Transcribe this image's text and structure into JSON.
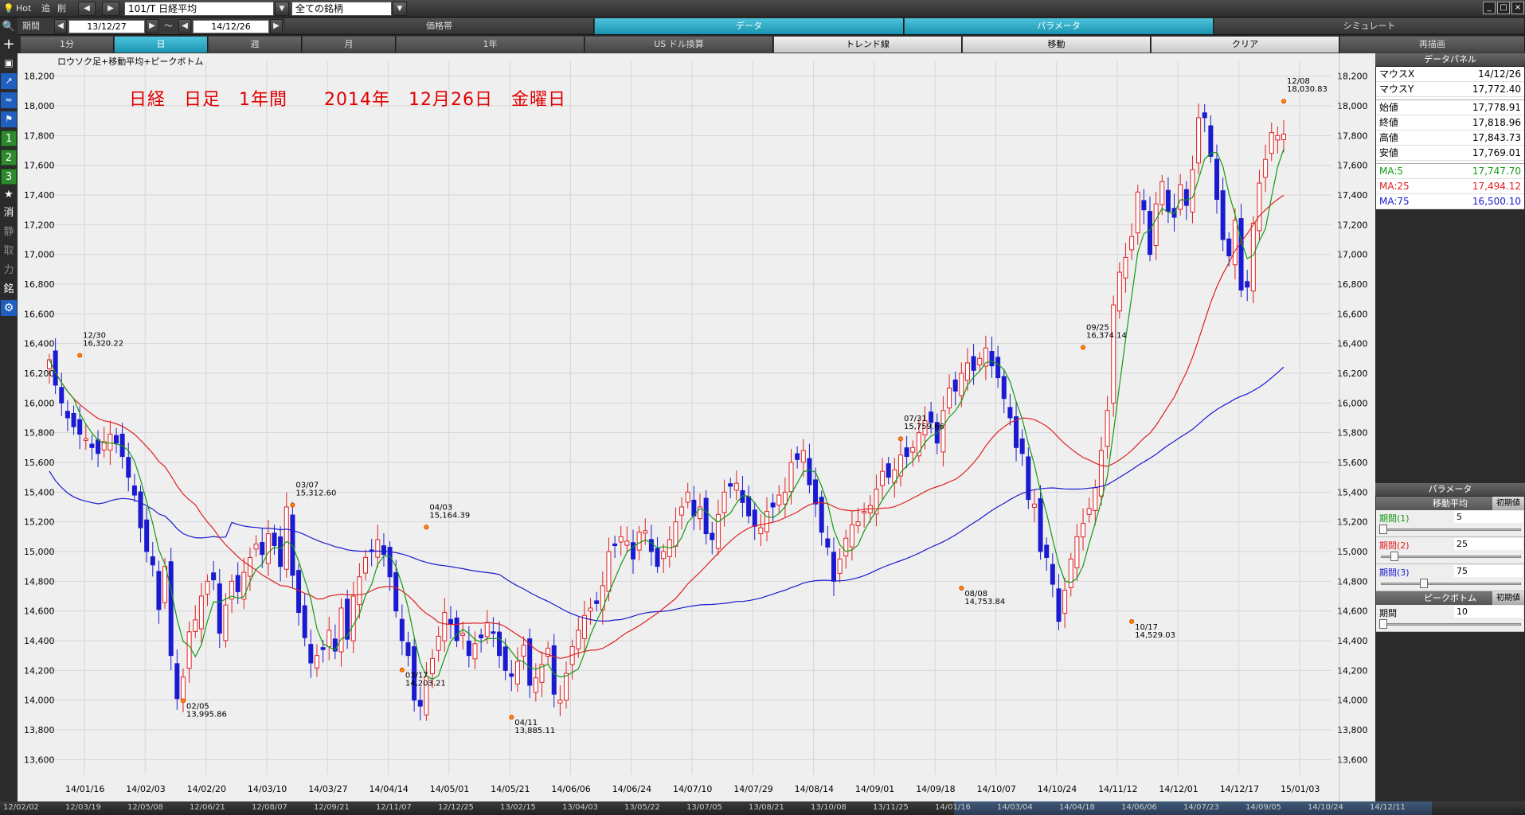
{
  "topbar": {
    "hot": "Hot",
    "add": "追",
    "del": "削",
    "symbol": "101/T 日経平均",
    "universe": "全ての銘柄"
  },
  "row2": {
    "period_label": "期間",
    "date_from": "13/12/27",
    "tilde": "～",
    "date_to": "14/12/26",
    "tabs": [
      {
        "label": "価格帯",
        "active": false
      },
      {
        "label": "データ",
        "active": true
      },
      {
        "label": "パラメータ",
        "active": true
      },
      {
        "label": "シミュレート",
        "active": false
      }
    ]
  },
  "row3": {
    "tabs": [
      {
        "label": "1分",
        "style": "dark"
      },
      {
        "label": "日",
        "style": "active"
      },
      {
        "label": "週",
        "style": "dark"
      },
      {
        "label": "月",
        "style": "dark"
      },
      {
        "label": "1年",
        "style": "dark"
      },
      {
        "label": "US ドル換算",
        "style": "dark"
      },
      {
        "label": "トレンド線",
        "style": "light"
      },
      {
        "label": "移動",
        "style": "light"
      },
      {
        "label": "クリア",
        "style": "light"
      },
      {
        "label": "再描画",
        "style": "dark"
      }
    ]
  },
  "leftbar": {
    "items": [
      "search-icon",
      "crosshair-icon",
      "camera-icon",
      "chart-icon",
      "chart2-icon",
      "flag-icon",
      "1",
      "2",
      "3",
      "★",
      "消",
      "静",
      "取",
      "力",
      "銘",
      "gear-icon"
    ]
  },
  "chart": {
    "label": "ロウソク足+移動平均+ピークボトム",
    "title": "日経　日足　1年間　　2014年　12月26日　金曜日",
    "colors": {
      "up": "#e02020",
      "down": "#1a1ad0",
      "ma5": "#139a13",
      "ma25": "#e02020",
      "ma75": "#1a1ad0",
      "bg": "#efefef"
    }
  },
  "chart_data": {
    "type": "candlestick",
    "title": "日経　日足　1年間　　2014年　12月26日　金曜日",
    "ylim": [
      13500,
      18300
    ],
    "y_ticks": [
      13600,
      13800,
      14000,
      14200,
      14400,
      14600,
      14800,
      15000,
      15200,
      15400,
      15600,
      15800,
      16000,
      16200,
      16400,
      16600,
      16800,
      17000,
      17200,
      17400,
      17600,
      17800,
      18000,
      18200
    ],
    "x_tick_labels": [
      "14/01/16",
      "14/02/03",
      "14/02/20",
      "14/03/10",
      "14/03/27",
      "14/04/14",
      "14/05/01",
      "14/05/21",
      "14/06/06",
      "14/06/24",
      "14/07/10",
      "14/07/29",
      "14/08/14",
      "14/09/01",
      "14/09/18",
      "14/10/07",
      "14/10/24",
      "14/11/12",
      "14/12/01",
      "14/12/17",
      "15/01/03"
    ],
    "annotations": [
      {
        "date": "12/30",
        "value": "16,320.22",
        "kind": "peak"
      },
      {
        "date": "02/05",
        "value": "13,995.86",
        "kind": "bottom"
      },
      {
        "date": "03/07",
        "value": "15,312.60",
        "kind": "peak"
      },
      {
        "date": "03/17",
        "value": "14,203.21",
        "kind": "bottom"
      },
      {
        "date": "04/03",
        "value": "15,164.39",
        "kind": "peak"
      },
      {
        "date": "04/11",
        "value": "13,885.11",
        "kind": "bottom"
      },
      {
        "date": "07/31",
        "value": "15,759.66",
        "kind": "peak"
      },
      {
        "date": "08/08",
        "value": "14,753.84",
        "kind": "bottom"
      },
      {
        "date": "09/25",
        "value": "16,374.14",
        "kind": "peak"
      },
      {
        "date": "10/17",
        "value": "14,529.03",
        "kind": "bottom"
      },
      {
        "date": "12/08",
        "value": "18,030.83",
        "kind": "peak"
      }
    ],
    "closes": [
      16291,
      16120,
      16000,
      15900,
      15840,
      15790,
      15760,
      15700,
      15660,
      15740,
      15790,
      15730,
      15640,
      15500,
      15380,
      15160,
      15000,
      14910,
      14610,
      14900,
      14300,
      14010,
      14155,
      14460,
      14540,
      14700,
      14800,
      14810,
      14450,
      14640,
      14800,
      14730,
      14860,
      14960,
      15050,
      14980,
      15120,
      15040,
      14900,
      15300,
      14840,
      14590,
      14420,
      14250,
      14300,
      14340,
      14470,
      14330,
      14620,
      14410,
      14700,
      14830,
      14960,
      15000,
      15080,
      14980,
      14830,
      14600,
      14400,
      14300,
      14000,
      13960,
      14160,
      14280,
      14430,
      14590,
      14510,
      14400,
      14450,
      14300,
      14380,
      14420,
      14520,
      14450,
      14300,
      14200,
      14160,
      14260,
      14370,
      14100,
      14150,
      14240,
      14350,
      14040,
      14000,
      14180,
      14360,
      14470,
      14570,
      14620,
      14650,
      14770,
      15000,
      15040,
      15100,
      15070,
      14950,
      15130,
      15140,
      15000,
      14900,
      15000,
      15080,
      15200,
      15300,
      15400,
      15240,
      15300,
      15120,
      15080,
      15250,
      15400,
      15440,
      15460,
      15330,
      15240,
      15170,
      15160,
      15270,
      15300,
      15380,
      15400,
      15600,
      15620,
      15680,
      15450,
      15320,
      15130,
      15030,
      14800,
      14950,
      15090,
      15180,
      15200,
      15270,
      15310,
      15420,
      15540,
      15500,
      15550,
      15650,
      15640,
      15700,
      15800,
      15880,
      15870,
      15730,
      15950,
      16100,
      16080,
      16200,
      16270,
      16220,
      16300,
      16370,
      16250,
      16170,
      16030,
      15900,
      15700,
      15660,
      15350,
      15320,
      15000,
      14960,
      14780,
      14530,
      14740,
      14950,
      15100,
      15190,
      15290,
      15430,
      15680,
      15950,
      16660,
      16880,
      16980,
      17120,
      17420,
      17300,
      17000,
      17340,
      17490,
      17290,
      17250,
      17470,
      17330,
      17570,
      17920,
      17920,
      17660,
      17370,
      17100,
      16990,
      17230,
      16760,
      16780,
      17210,
      17480,
      17640,
      17820,
      17800,
      17810
    ]
  },
  "rightpanel": {
    "data_title": "データパネル",
    "rows": [
      {
        "k": "マウスX",
        "v": "14/12/26",
        "color": "#000"
      },
      {
        "k": "マウスY",
        "v": "17,772.40",
        "color": "#000"
      },
      {
        "k": "始値",
        "v": "17,778.91",
        "color": "#000"
      },
      {
        "k": "終値",
        "v": "17,818.96",
        "color": "#000"
      },
      {
        "k": "高値",
        "v": "17,843.73",
        "color": "#000"
      },
      {
        "k": "安値",
        "v": "17,769.01",
        "color": "#000"
      },
      {
        "k": "MA:5",
        "v": "17,747.70",
        "color": "#139a13"
      },
      {
        "k": "MA:25",
        "v": "17,494.12",
        "color": "#e02020"
      },
      {
        "k": "MA:75",
        "v": "16,500.10",
        "color": "#1a1ad0"
      }
    ],
    "param_title": "パラメータ",
    "ma_title": "移動平均",
    "reset": "初期値",
    "params": [
      {
        "label": "期間(1)",
        "value": "5",
        "color": "#139a13",
        "level": 0.0
      },
      {
        "label": "期間(2)",
        "value": "25",
        "color": "#e02020",
        "level": 0.08
      },
      {
        "label": "期間(3)",
        "value": "75",
        "color": "#1a1ad0",
        "level": 0.3
      }
    ],
    "pb_title": "ピークボトム",
    "pb_params": [
      {
        "label": "期間",
        "value": "10",
        "color": "#000",
        "level": 0.0
      }
    ]
  },
  "timebar": {
    "labels": [
      "12/02/02",
      "12/03/19",
      "12/05/08",
      "12/06/21",
      "12/08/07",
      "12/09/21",
      "12/11/07",
      "12/12/25",
      "13/02/15",
      "13/04/03",
      "13/05/22",
      "13/07/05",
      "13/08/21",
      "13/10/08",
      "13/11/25",
      "14/01/16",
      "14/03/04",
      "14/04/18",
      "14/06/06",
      "14/07/23",
      "14/09/05",
      "14/10/24",
      "14/12/11"
    ]
  }
}
